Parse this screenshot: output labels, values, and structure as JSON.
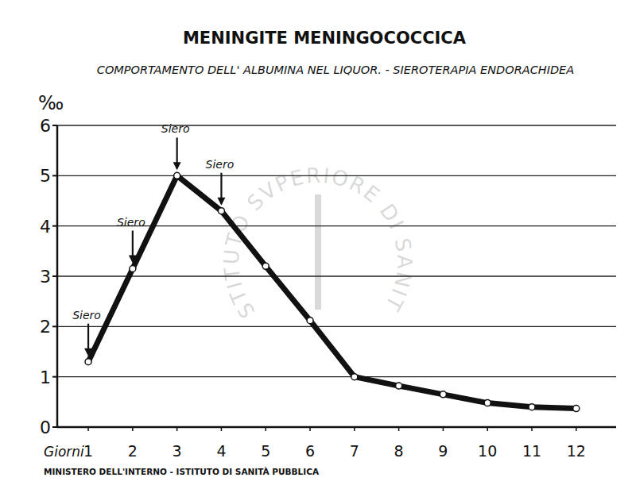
{
  "chart_data": {
    "type": "line",
    "title": "MENINGITE MENINGOCOCCICA",
    "subtitle": "COMPORTAMENTO DELL' ALBUMINA NEL LIQUOR. - SIEROTERAPIA ENDORACHIDEA",
    "y_label": "‰",
    "x_label": "Giorni",
    "footer": "MINISTERO DELL'INTERNO - ISTITUTO DI SANITÀ PUBBLICA",
    "watermark": "ISTITUTO SVPERIORE DI SANITÀ",
    "x": [
      1,
      2,
      3,
      4,
      5,
      6,
      7,
      8,
      9,
      10,
      11,
      12
    ],
    "values": [
      1.3,
      3.15,
      5.0,
      4.3,
      3.2,
      2.12,
      1.0,
      0.82,
      0.65,
      0.48,
      0.4,
      0.37
    ],
    "color": "#111111",
    "marker": "circle",
    "xlim": [
      0.3,
      12.9
    ],
    "xticks": [
      1,
      2,
      3,
      4,
      5,
      6,
      7,
      8,
      9,
      10,
      11,
      12
    ],
    "ylim": [
      0,
      6
    ],
    "yticks": [
      0,
      1,
      2,
      3,
      4,
      5,
      6
    ],
    "grid": true,
    "annotations": [
      {
        "text": "Siero",
        "x": 1,
        "y": 1.3
      },
      {
        "text": "Siero",
        "x": 2,
        "y": 3.15
      },
      {
        "text": "Siero",
        "x": 3,
        "y": 5.0
      },
      {
        "text": "Siero",
        "x": 4,
        "y": 4.3
      }
    ]
  }
}
